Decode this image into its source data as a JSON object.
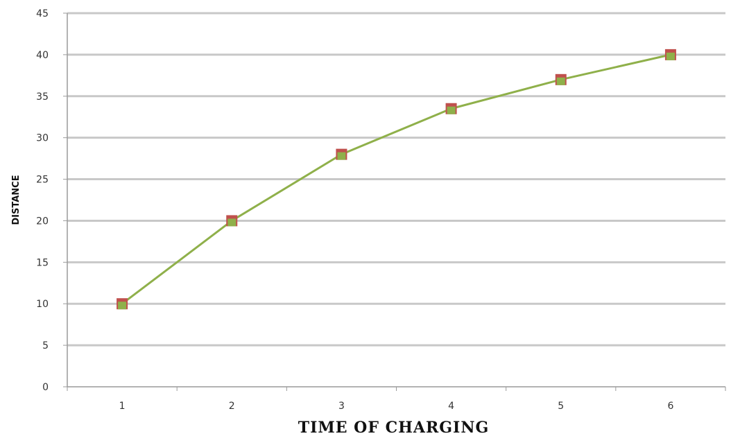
{
  "chart_data": {
    "type": "line",
    "title": "",
    "xlabel": "TIME OF  CHARGING",
    "ylabel": "DISTANCE",
    "categories": [
      "1",
      "2",
      "3",
      "4",
      "5",
      "6"
    ],
    "series": [
      {
        "values": [
          10,
          20,
          28,
          33.5,
          37,
          40
        ]
      }
    ],
    "ylim": [
      0,
      45
    ],
    "yticks": [
      0,
      5,
      10,
      15,
      20,
      25,
      30,
      35,
      40,
      45
    ],
    "grid": "horizontal",
    "legend": "none",
    "colors": {
      "line": "#8fb04a",
      "marker_fill": "#8fb04a",
      "marker_edge": "#c0504d",
      "grid": "#c8c8c8",
      "axis": "#9a9a9a"
    }
  }
}
